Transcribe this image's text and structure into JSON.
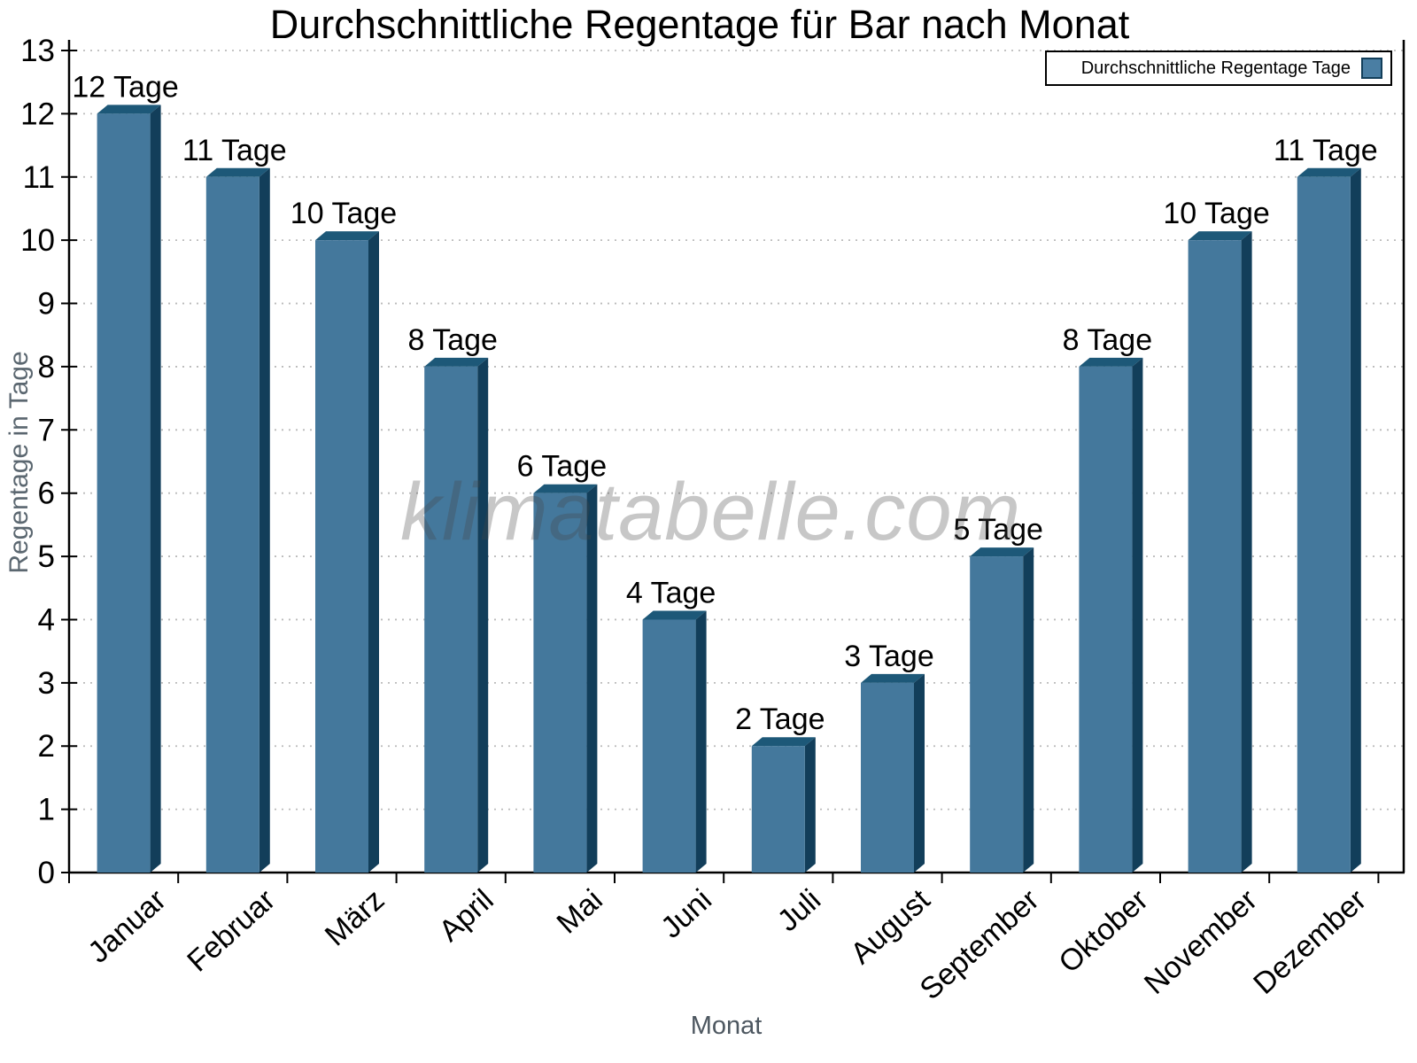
{
  "chart_data": {
    "type": "bar",
    "title": "Durchschnittliche Regentage für Bar nach Monat",
    "xlabel": "Monat",
    "ylabel": "Regentage in Tage",
    "categories": [
      "Januar",
      "Februar",
      "März",
      "April",
      "Mai",
      "Juni",
      "Juli",
      "August",
      "September",
      "Oktober",
      "November",
      "Dezember"
    ],
    "values": [
      12,
      11,
      10,
      8,
      6,
      4,
      2,
      3,
      5,
      8,
      10,
      11
    ],
    "value_label_suffix": " Tage",
    "value_labels": [
      "12 Tage",
      "11 Tage",
      "10 Tage",
      "8 Tage",
      "6 Tage",
      "4 Tage",
      "2 Tage",
      "3 Tage",
      "5 Tage",
      "8 Tage",
      "10 Tage",
      "11 Tage"
    ],
    "ylim": [
      0,
      13
    ],
    "ytick_step": 1,
    "grid": "horizontal-dotted",
    "legend": {
      "label": "Durchschnittliche Regentage Tage",
      "position": "top-right"
    },
    "watermark": "klimatabelle.com",
    "colors": {
      "bar_face": "#44789C",
      "bar_top": "#1D5878",
      "bar_side": "#123E5A",
      "legend_swatch": "#4A7EA3",
      "legend_swatch_border": "#123E5A",
      "grid": "#BBBBBB",
      "axis": "#000000",
      "tick_label": "#000000",
      "axis_title": "#5B6770",
      "background": "#FFFFFF"
    }
  }
}
